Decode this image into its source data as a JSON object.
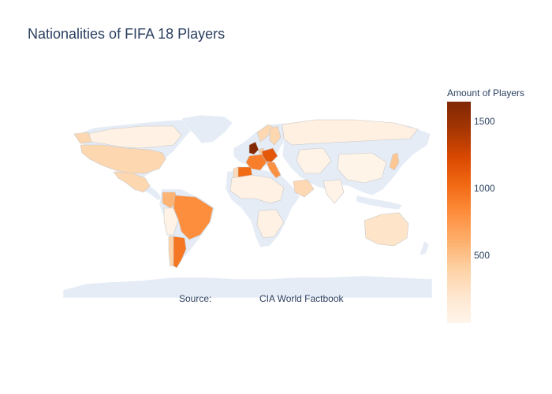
{
  "chart_data": {
    "type": "choropleth",
    "title": "Nationalities of FIFA 18 Players",
    "annotation": {
      "label": "Source:",
      "text": "CIA World Factbook"
    },
    "colorbar": {
      "title": "Amount of Players",
      "tick_labels": [
        "500",
        "1000",
        "1500"
      ],
      "tick_values": [
        500,
        1000,
        1500
      ],
      "range": [
        1,
        1650
      ],
      "colorscale": [
        "#fff5eb",
        "#fee6ce",
        "#fdd0a2",
        "#fdae6b",
        "#fd8d3c",
        "#f16913",
        "#d94801",
        "#a63603",
        "#7f2704"
      ]
    },
    "values": {
      "England": 1630,
      "Germany": 1140,
      "Spain": 1020,
      "France": 910,
      "Argentina": 950,
      "Brazil": 820,
      "Italy": 800,
      "Colombia": 590,
      "Japan": 470,
      "Netherlands": 450,
      "United States": 350,
      "Mexico": 350,
      "Chile": 380,
      "Saudi Arabia": 340,
      "Australia": 230,
      "Portugal": 320,
      "Sweden": 350,
      "Norway": 340,
      "Russia": 70,
      "Canada": 60,
      "China": 20,
      "India": 30,
      "Africa": 60,
      "Other": 40
    },
    "colors": {
      "land": "#e5ecf6",
      "border": "#c8c8c8"
    }
  }
}
